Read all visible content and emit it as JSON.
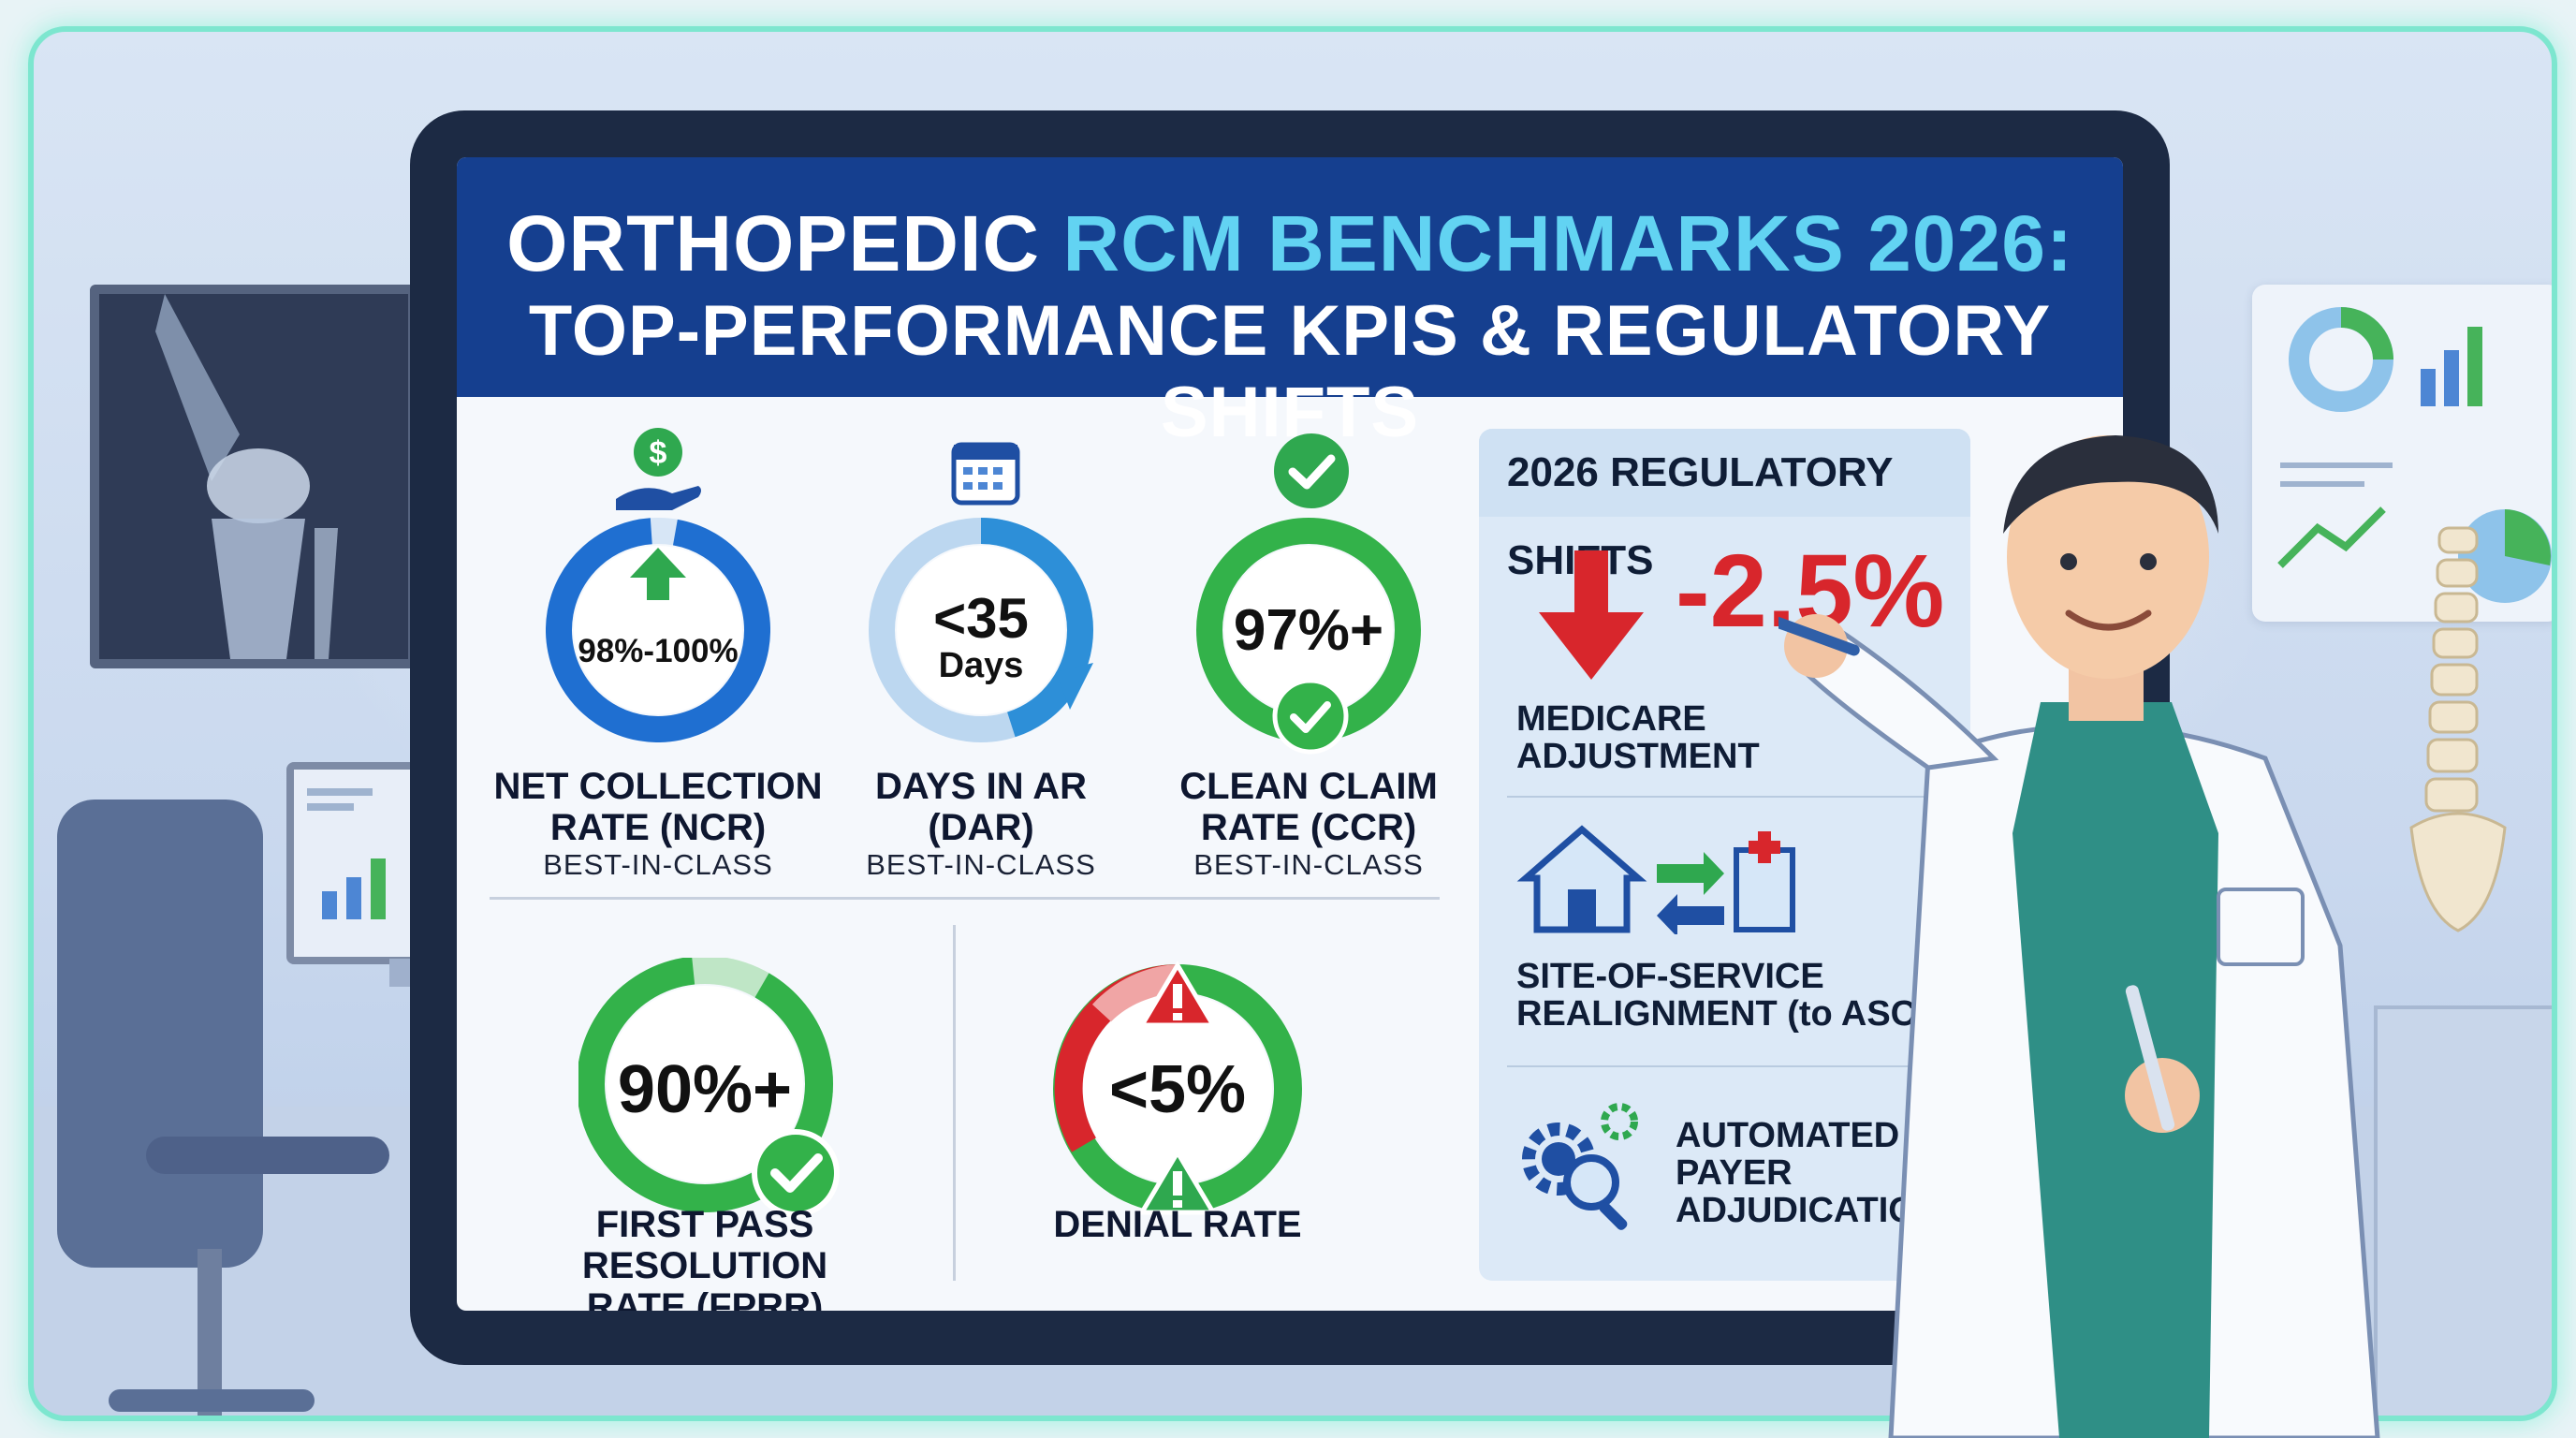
{
  "title": {
    "line1_a": "ORTHOPEDIC ",
    "line1_b": "RCM BENCHMARKS 2026:",
    "line2": "TOP-PERFORMANCE KPIS & REGULATORY SHIFTS"
  },
  "kpis": [
    {
      "value": "98%-100%",
      "name_1": "NET COLLECTION",
      "name_2": "RATE (NCR)",
      "sub": "BEST-IN-CLASS",
      "icon": "money-hand-icon"
    },
    {
      "value_1": "<35",
      "value_2": "Days",
      "name_1": "DAYS IN AR",
      "name_2": "(DAR)",
      "sub": "BEST-IN-CLASS",
      "icon": "calendar-icon"
    },
    {
      "value": "97%+",
      "name_1": "CLEAN CLAIM",
      "name_2": "RATE (CCR)",
      "sub": "BEST-IN-CLASS",
      "icon": "check-circle-icon"
    },
    {
      "value": "90%+",
      "name_1": "FIRST PASS RESOLUTION",
      "name_2": "RATE (FPRR)"
    },
    {
      "value": "<5%",
      "name": "DENIAL RATE"
    }
  ],
  "regulatory": {
    "title": "2026 REGULATORY SHIFTS",
    "medicare_value": "-2.5%",
    "medicare_label_1": "MEDICARE",
    "medicare_label_2": "ADJUSTMENT",
    "site_label_1": "SITE-OF-SERVICE",
    "site_label_2": "REALIGNMENT (to ASC)",
    "auto_label_1": "AUTOMATED",
    "auto_label_2": "PAYER",
    "auto_label_3": "ADJUDICATION"
  },
  "colors": {
    "header": "#153f8f",
    "accent_title": "#62d3f2",
    "blue_ring": "#1f6fd1",
    "green_ring": "#33b24a",
    "red": "#d8262c",
    "frame_glow": "#7de6cf"
  }
}
